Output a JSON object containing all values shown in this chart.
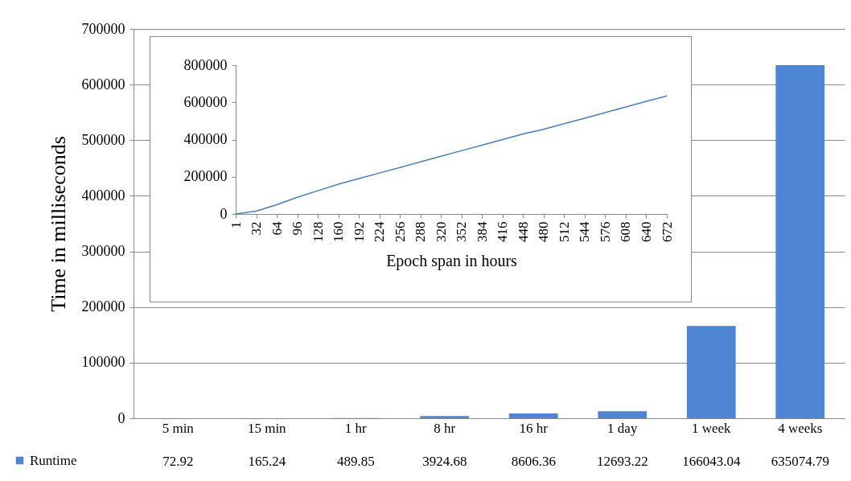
{
  "chart_data": [
    {
      "type": "bar",
      "ylabel": "Time in milliseconds",
      "categories": [
        "5 min",
        "15 min",
        "1 hr",
        "8 hr",
        "16 hr",
        "1 day",
        "1 week",
        "4 weeks"
      ],
      "series": [
        {
          "name": "Runtime",
          "color": "#4f86d4",
          "values": [
            72.92,
            165.24,
            489.85,
            3924.68,
            8606.36,
            12693.22,
            166043.04,
            635074.79
          ]
        }
      ],
      "ylim": [
        0,
        700000
      ],
      "yticks": [
        0,
        100000,
        200000,
        300000,
        400000,
        500000,
        600000,
        700000
      ],
      "grid": "y",
      "legend": "bottom",
      "data_labels": true
    },
    {
      "type": "line",
      "xlabel": "Epoch span in hours",
      "categories": [
        "1",
        "32",
        "64",
        "96",
        "128",
        "160",
        "192",
        "224",
        "256",
        "288",
        "320",
        "352",
        "384",
        "416",
        "448",
        "480",
        "512",
        "544",
        "576",
        "608",
        "640",
        "672"
      ],
      "series": [
        {
          "color": "#4a7ebb",
          "values": [
            0,
            15000,
            50000,
            90000,
            125000,
            160000,
            190000,
            220000,
            250000,
            280000,
            310000,
            340000,
            370000,
            400000,
            430000,
            455000,
            485000,
            515000,
            545000,
            575000,
            605000,
            635000
          ]
        }
      ],
      "ylim": [
        0,
        800000
      ],
      "yticks": [
        0,
        200000,
        400000,
        600000,
        800000
      ],
      "grid": false
    }
  ]
}
